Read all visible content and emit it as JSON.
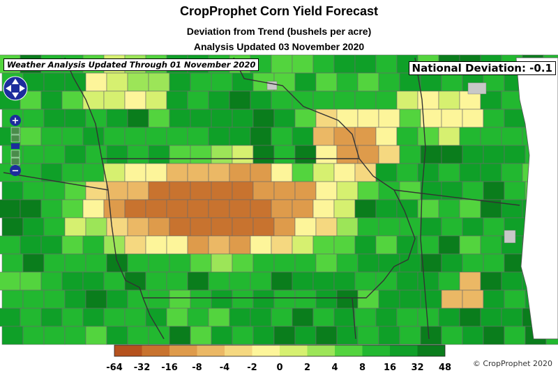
{
  "header": {
    "title": "CropProphet Corn Yield Forecast",
    "subtitle": "Deviation from Trend (bushels per acre)",
    "updated": "Analysis Updated 03 November 2020"
  },
  "map": {
    "weather_note": "Weather Analysis Updated Through 01 November 2020",
    "national_deviation": "National Deviation: -0.1"
  },
  "controls": {
    "pan": "pan-control",
    "zoom_in": "+",
    "zoom_out": "−"
  },
  "legend": {
    "ticks": [
      "-64",
      "-32",
      "-16",
      "-8",
      "-4",
      "-2",
      "0",
      "2",
      "4",
      "8",
      "16",
      "32",
      "48"
    ],
    "colors": [
      "#b5521e",
      "#c8732f",
      "#de9b4b",
      "#ebb865",
      "#f5d880",
      "#fdf59a",
      "#d6f070",
      "#9ce558",
      "#53d43e",
      "#22b830",
      "#0fa028",
      "#0a7d1c"
    ]
  },
  "copyright": "© CropProphet 2020"
}
